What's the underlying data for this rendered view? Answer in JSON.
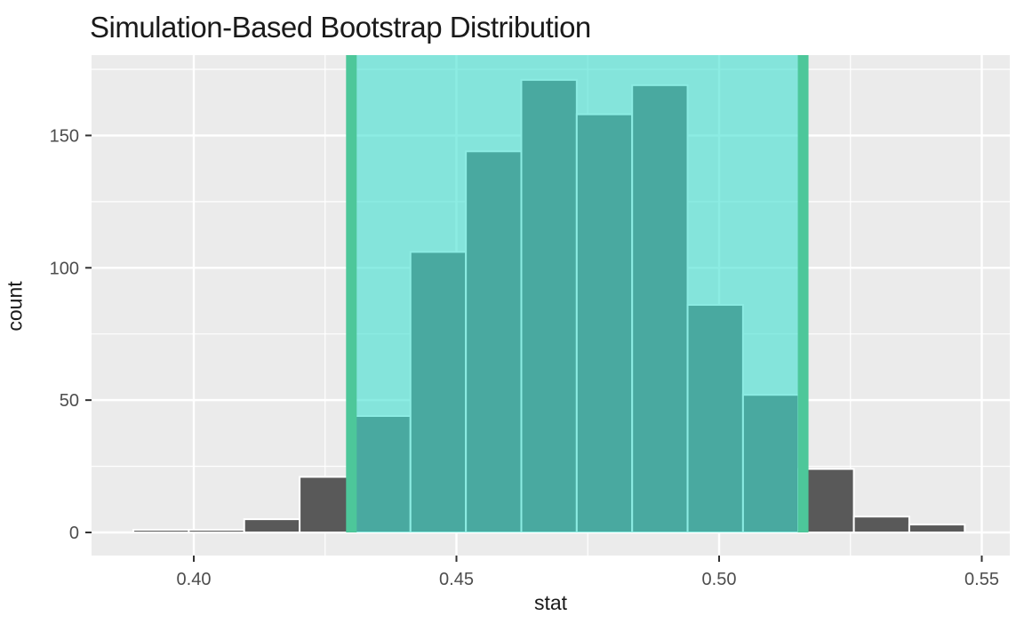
{
  "title": "Simulation-Based Bootstrap Distribution",
  "chart_data": {
    "type": "bar",
    "subtype": "histogram",
    "title": "Simulation-Based Bootstrap Distribution",
    "xlabel": "stat",
    "ylabel": "count",
    "bin_start": 0.3885,
    "bin_width": 0.01055,
    "counts": [
      1,
      1,
      5,
      21,
      44,
      106,
      144,
      171,
      158,
      169,
      86,
      52,
      24,
      6,
      3
    ],
    "ci": {
      "lower": 0.43,
      "upper": 0.516
    },
    "x_tick_values": [
      0.4,
      0.45,
      0.5,
      0.55
    ],
    "x_tick_labels": [
      "0.40",
      "0.45",
      "0.50",
      "0.55"
    ],
    "y_tick_values": [
      0,
      50,
      100,
      150
    ],
    "y_tick_labels": [
      "0",
      "50",
      "100",
      "150"
    ],
    "xlim": [
      0.3805,
      0.5553
    ],
    "ylim": [
      -8.5,
      179.5
    ],
    "grid": "on",
    "legend": "none",
    "colors": {
      "background": "#FFFFFF",
      "panel": "#EBEBEB",
      "grid": "#FFFFFF",
      "bar_fill": "#595959",
      "bar_stroke": "#FFFFFF",
      "ci_shade": "#40E0D0",
      "ci_shade_alpha": 0.6,
      "ci_line": "#4DC79A",
      "tick_mark": "#333333",
      "tick_label": "#4D4D4D",
      "text": "#1A1A1A"
    }
  }
}
